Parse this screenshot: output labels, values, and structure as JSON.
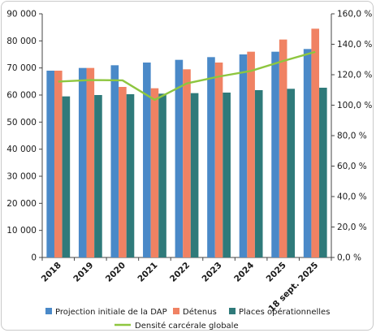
{
  "chart_data": {
    "type": "bar",
    "categories": [
      "2018",
      "2019",
      "2020",
      "2021",
      "2022",
      "2023",
      "2024",
      "2025",
      "18 sept. 2025"
    ],
    "series": [
      {
        "name": "Projection initiale de la DAP",
        "type": "bar",
        "axis": "left",
        "color": "#4a89c8",
        "values": [
          69000,
          70000,
          71000,
          72000,
          73000,
          74000,
          75000,
          76000,
          77000
        ]
      },
      {
        "name": "Détenus",
        "type": "bar",
        "axis": "left",
        "color": "#f08263",
        "values": [
          69000,
          70000,
          63000,
          62500,
          69500,
          72000,
          76000,
          80500,
          84500
        ]
      },
      {
        "name": "Places opérationnelles",
        "type": "bar",
        "axis": "left",
        "color": "#2f7a7a",
        "values": [
          59500,
          60000,
          60300,
          60500,
          60700,
          60900,
          61800,
          62300,
          62700
        ]
      },
      {
        "name": "Densité carcérale globale",
        "type": "line",
        "axis": "right",
        "color": "#8ec63f",
        "values": [
          115.5,
          116.5,
          116.3,
          103.5,
          114.3,
          118.8,
          122.5,
          129.0,
          135.0
        ]
      }
    ],
    "y_left": {
      "min": 0,
      "max": 90000,
      "ticks": [
        "0",
        "10 000",
        "20 000",
        "30 000",
        "40 000",
        "50 000",
        "60 000",
        "70 000",
        "80 000",
        "90 000"
      ]
    },
    "y_right": {
      "min": 0,
      "max": 160,
      "ticks": [
        "0,0 %",
        "20,0 %",
        "40,0 %",
        "60,0 %",
        "80,0 %",
        "100,0 %",
        "120,0 %",
        "140,0 %",
        "160,0 %"
      ]
    },
    "grid": false,
    "legend_position": "bottom"
  }
}
